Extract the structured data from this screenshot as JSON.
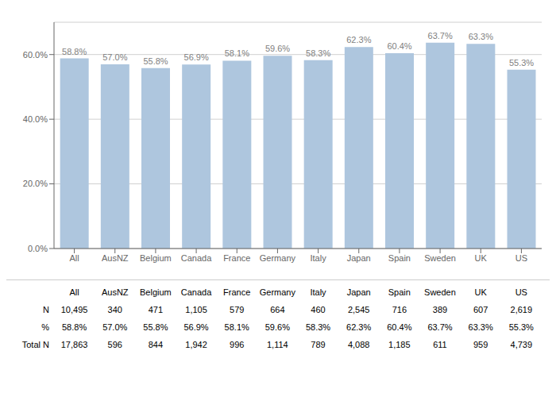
{
  "chart_data": {
    "type": "bar",
    "categories": [
      "All",
      "AusNZ",
      "Belgium",
      "Canada",
      "France",
      "Germany",
      "Italy",
      "Japan",
      "Spain",
      "Sweden",
      "UK",
      "US"
    ],
    "values": [
      58.8,
      57.0,
      55.8,
      56.9,
      58.1,
      59.6,
      58.3,
      62.3,
      60.4,
      63.7,
      63.3,
      55.3
    ],
    "value_labels": [
      "58.8%",
      "57.0%",
      "55.8%",
      "56.9%",
      "58.1%",
      "59.6%",
      "58.3%",
      "62.3%",
      "60.4%",
      "63.7%",
      "63.3%",
      "55.3%"
    ],
    "color": "#aec6de",
    "ylim": [
      0,
      70
    ],
    "yticks": [
      {
        "value": 0,
        "label": "0.0%"
      },
      {
        "value": 20,
        "label": "20.0%"
      },
      {
        "value": 40,
        "label": "40.0%"
      },
      {
        "value": 60,
        "label": "60.0%"
      }
    ],
    "grid": true,
    "data_labels": true,
    "table": {
      "rows": [
        {
          "label": "N",
          "values": [
            "10,495",
            "340",
            "471",
            "1,105",
            "579",
            "664",
            "460",
            "2,545",
            "716",
            "389",
            "607",
            "2,619"
          ]
        },
        {
          "label": "%",
          "values": [
            "58.8%",
            "57.0%",
            "55.8%",
            "56.9%",
            "58.1%",
            "59.6%",
            "58.3%",
            "62.3%",
            "60.4%",
            "63.7%",
            "63.3%",
            "55.3%"
          ]
        },
        {
          "label": "Total N",
          "values": [
            "17,863",
            "596",
            "844",
            "1,942",
            "996",
            "1,114",
            "789",
            "4,088",
            "1,185",
            "611",
            "959",
            "4,739"
          ]
        }
      ]
    }
  }
}
